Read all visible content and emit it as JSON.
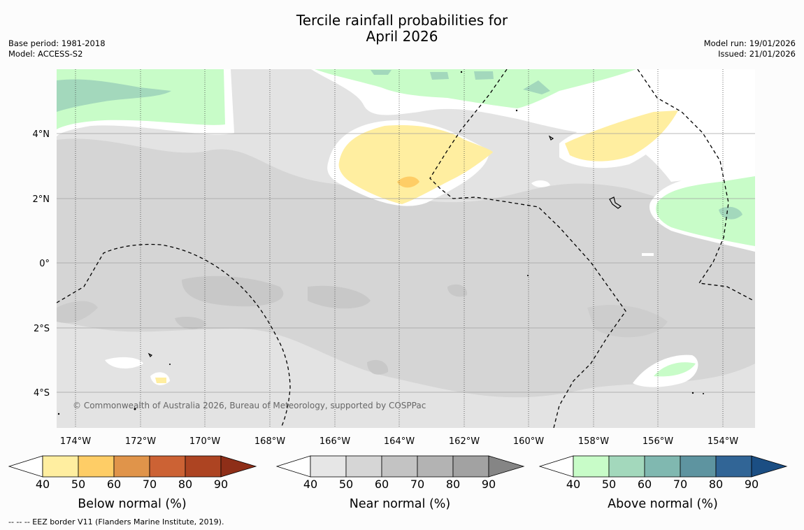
{
  "title_line1": "Tercile rainfall probabilities for",
  "title_line2": "April 2026",
  "meta_left": {
    "base_period": "Base period: 1981-2018",
    "model": "Model: ACCESS-S2"
  },
  "meta_right": {
    "model_run": "Model run: 19/01/2026",
    "issued": "Issued: 21/01/2026"
  },
  "lat_labels": [
    "4°N",
    "2°N",
    "0°",
    "2°S",
    "4°S"
  ],
  "lon_labels": [
    "174°W",
    "172°W",
    "170°W",
    "168°W",
    "166°W",
    "164°W",
    "162°W",
    "160°W",
    "158°W",
    "156°W",
    "154°W"
  ],
  "copyright": "© Commonwealth of Australia 2026, Bureau of Meteorology, supported by COSPPac",
  "colorbars": [
    {
      "title": "Below normal (%)",
      "ticks": [
        "40",
        "50",
        "60",
        "70",
        "80",
        "90"
      ],
      "colors": [
        "#ffeea0",
        "#fecd66",
        "#e0944a",
        "#cc6234",
        "#ad4422",
        "#8e2e18"
      ]
    },
    {
      "title": "Near normal (%)",
      "ticks": [
        "40",
        "50",
        "60",
        "70",
        "80",
        "90"
      ],
      "colors": [
        "#e6e6e6",
        "#d6d6d6",
        "#c3c3c3",
        "#b3b3b3",
        "#a2a2a2",
        "#858585"
      ]
    },
    {
      "title": "Above normal (%)",
      "ticks": [
        "40",
        "50",
        "60",
        "70",
        "80",
        "90"
      ],
      "colors": [
        "#c8fcc8",
        "#a3d8bc",
        "#80b8b0",
        "#5e94a0",
        "#316596",
        "#1b4e83"
      ]
    }
  ],
  "footer": "--  --  -- EEZ border V11 (Flanders Marine Institute, 2019)."
}
